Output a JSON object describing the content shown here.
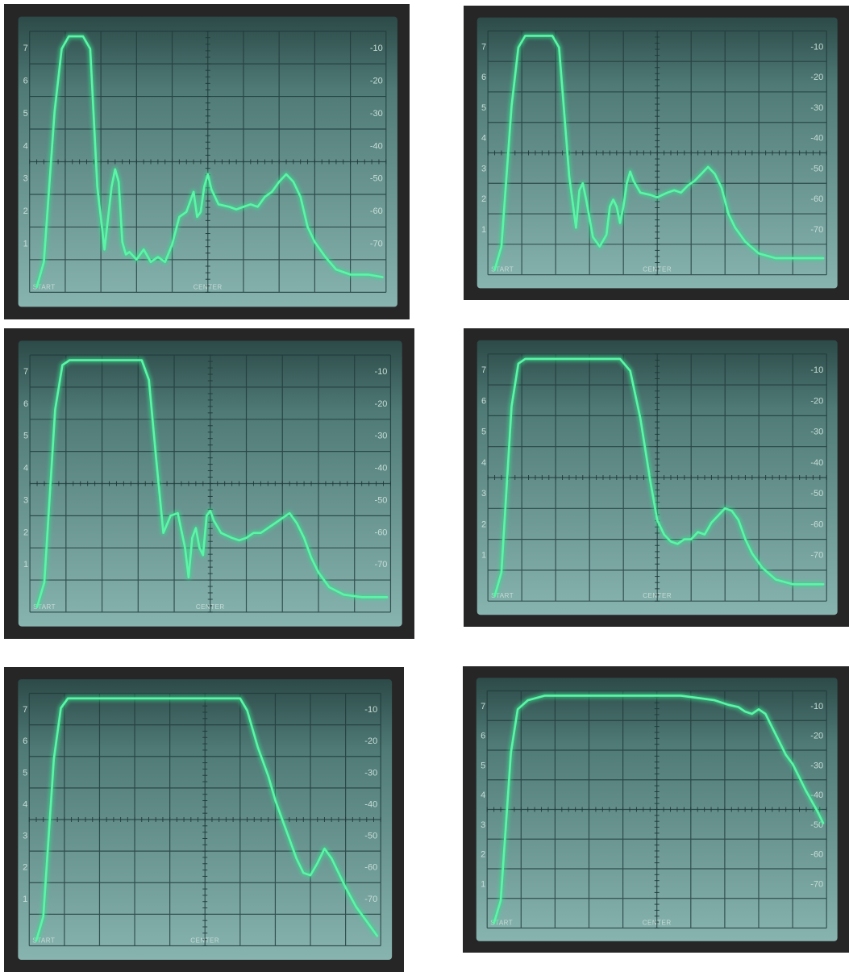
{
  "screen": {
    "start_label": "START",
    "center_label": "CENTER",
    "left_scale": [
      "7",
      "6",
      "5",
      "4",
      "3",
      "2",
      "1"
    ],
    "right_scale": [
      "-10",
      "-20",
      "-30",
      "-40",
      "-50",
      "-60",
      "-70"
    ],
    "colors": {
      "trace": "#5cf5a8",
      "trace_glow": "#35e08a",
      "screen_top": "#2c4a48",
      "screen_bottom": "#88b4b0",
      "bezel": "#262626",
      "grid": "#1f3a3a"
    }
  },
  "photos": [
    {
      "trace": [
        [
          0.02,
          1.0
        ],
        [
          0.04,
          0.9
        ],
        [
          0.07,
          0.3
        ],
        [
          0.09,
          0.05
        ],
        [
          0.11,
          0.0
        ],
        [
          0.13,
          0.0
        ],
        [
          0.15,
          0.0
        ],
        [
          0.17,
          0.05
        ],
        [
          0.19,
          0.6
        ],
        [
          0.21,
          0.85
        ],
        [
          0.23,
          0.6
        ],
        [
          0.24,
          0.53
        ],
        [
          0.25,
          0.58
        ],
        [
          0.26,
          0.82
        ],
        [
          0.27,
          0.87
        ],
        [
          0.28,
          0.86
        ],
        [
          0.3,
          0.89
        ],
        [
          0.32,
          0.85
        ],
        [
          0.34,
          0.9
        ],
        [
          0.36,
          0.88
        ],
        [
          0.38,
          0.9
        ],
        [
          0.4,
          0.83
        ],
        [
          0.42,
          0.72
        ],
        [
          0.44,
          0.7
        ],
        [
          0.45,
          0.66
        ],
        [
          0.46,
          0.62
        ],
        [
          0.47,
          0.72
        ],
        [
          0.48,
          0.7
        ],
        [
          0.49,
          0.6
        ],
        [
          0.5,
          0.55
        ],
        [
          0.51,
          0.61
        ],
        [
          0.53,
          0.67
        ],
        [
          0.56,
          0.68
        ],
        [
          0.58,
          0.69
        ],
        [
          0.6,
          0.68
        ],
        [
          0.62,
          0.67
        ],
        [
          0.64,
          0.68
        ],
        [
          0.66,
          0.64
        ],
        [
          0.68,
          0.62
        ],
        [
          0.7,
          0.58
        ],
        [
          0.72,
          0.55
        ],
        [
          0.74,
          0.58
        ],
        [
          0.76,
          0.64
        ],
        [
          0.78,
          0.76
        ],
        [
          0.8,
          0.82
        ],
        [
          0.83,
          0.88
        ],
        [
          0.86,
          0.93
        ],
        [
          0.9,
          0.95
        ],
        [
          0.95,
          0.95
        ],
        [
          0.99,
          0.96
        ]
      ]
    },
    {
      "trace": [
        [
          0.02,
          1.0
        ],
        [
          0.04,
          0.9
        ],
        [
          0.07,
          0.3
        ],
        [
          0.09,
          0.05
        ],
        [
          0.11,
          0.0
        ],
        [
          0.14,
          0.0
        ],
        [
          0.17,
          0.0
        ],
        [
          0.19,
          0.0
        ],
        [
          0.21,
          0.05
        ],
        [
          0.24,
          0.6
        ],
        [
          0.26,
          0.82
        ],
        [
          0.27,
          0.66
        ],
        [
          0.28,
          0.63
        ],
        [
          0.29,
          0.7
        ],
        [
          0.31,
          0.86
        ],
        [
          0.33,
          0.9
        ],
        [
          0.35,
          0.85
        ],
        [
          0.36,
          0.73
        ],
        [
          0.37,
          0.7
        ],
        [
          0.38,
          0.73
        ],
        [
          0.39,
          0.8
        ],
        [
          0.4,
          0.73
        ],
        [
          0.41,
          0.63
        ],
        [
          0.42,
          0.58
        ],
        [
          0.43,
          0.62
        ],
        [
          0.45,
          0.67
        ],
        [
          0.48,
          0.68
        ],
        [
          0.5,
          0.69
        ],
        [
          0.53,
          0.67
        ],
        [
          0.55,
          0.66
        ],
        [
          0.57,
          0.67
        ],
        [
          0.59,
          0.64
        ],
        [
          0.61,
          0.62
        ],
        [
          0.63,
          0.59
        ],
        [
          0.65,
          0.56
        ],
        [
          0.67,
          0.59
        ],
        [
          0.69,
          0.65
        ],
        [
          0.71,
          0.76
        ],
        [
          0.73,
          0.82
        ],
        [
          0.76,
          0.88
        ],
        [
          0.8,
          0.93
        ],
        [
          0.85,
          0.95
        ],
        [
          0.92,
          0.95
        ],
        [
          0.99,
          0.95
        ]
      ]
    },
    {
      "trace": [
        [
          0.02,
          1.0
        ],
        [
          0.04,
          0.9
        ],
        [
          0.07,
          0.2
        ],
        [
          0.09,
          0.02
        ],
        [
          0.11,
          0.0
        ],
        [
          0.15,
          0.0
        ],
        [
          0.19,
          0.0
        ],
        [
          0.23,
          0.0
        ],
        [
          0.27,
          0.0
        ],
        [
          0.31,
          0.0
        ],
        [
          0.33,
          0.08
        ],
        [
          0.35,
          0.4
        ],
        [
          0.37,
          0.7
        ],
        [
          0.39,
          0.63
        ],
        [
          0.41,
          0.62
        ],
        [
          0.43,
          0.76
        ],
        [
          0.44,
          0.88
        ],
        [
          0.45,
          0.72
        ],
        [
          0.46,
          0.68
        ],
        [
          0.47,
          0.76
        ],
        [
          0.48,
          0.79
        ],
        [
          0.49,
          0.63
        ],
        [
          0.5,
          0.61
        ],
        [
          0.51,
          0.65
        ],
        [
          0.53,
          0.7
        ],
        [
          0.56,
          0.72
        ],
        [
          0.58,
          0.73
        ],
        [
          0.6,
          0.72
        ],
        [
          0.62,
          0.7
        ],
        [
          0.64,
          0.7
        ],
        [
          0.66,
          0.68
        ],
        [
          0.68,
          0.66
        ],
        [
          0.7,
          0.64
        ],
        [
          0.72,
          0.62
        ],
        [
          0.74,
          0.66
        ],
        [
          0.76,
          0.72
        ],
        [
          0.78,
          0.8
        ],
        [
          0.8,
          0.86
        ],
        [
          0.83,
          0.92
        ],
        [
          0.87,
          0.95
        ],
        [
          0.92,
          0.96
        ],
        [
          0.99,
          0.96
        ]
      ]
    },
    {
      "trace": [
        [
          0.02,
          1.0
        ],
        [
          0.04,
          0.9
        ],
        [
          0.07,
          0.2
        ],
        [
          0.09,
          0.02
        ],
        [
          0.11,
          0.0
        ],
        [
          0.15,
          0.0
        ],
        [
          0.2,
          0.0
        ],
        [
          0.25,
          0.0
        ],
        [
          0.3,
          0.0
        ],
        [
          0.35,
          0.0
        ],
        [
          0.39,
          0.0
        ],
        [
          0.42,
          0.05
        ],
        [
          0.45,
          0.25
        ],
        [
          0.48,
          0.52
        ],
        [
          0.5,
          0.68
        ],
        [
          0.52,
          0.74
        ],
        [
          0.54,
          0.77
        ],
        [
          0.56,
          0.78
        ],
        [
          0.58,
          0.76
        ],
        [
          0.6,
          0.76
        ],
        [
          0.62,
          0.73
        ],
        [
          0.64,
          0.74
        ],
        [
          0.66,
          0.69
        ],
        [
          0.68,
          0.66
        ],
        [
          0.7,
          0.63
        ],
        [
          0.72,
          0.64
        ],
        [
          0.74,
          0.68
        ],
        [
          0.76,
          0.76
        ],
        [
          0.78,
          0.82
        ],
        [
          0.81,
          0.88
        ],
        [
          0.85,
          0.93
        ],
        [
          0.9,
          0.95
        ],
        [
          0.99,
          0.95
        ]
      ]
    },
    {
      "trace": [
        [
          0.02,
          1.0
        ],
        [
          0.04,
          0.9
        ],
        [
          0.07,
          0.25
        ],
        [
          0.09,
          0.04
        ],
        [
          0.11,
          0.0
        ],
        [
          0.16,
          0.0
        ],
        [
          0.21,
          0.0
        ],
        [
          0.26,
          0.0
        ],
        [
          0.31,
          0.0
        ],
        [
          0.36,
          0.0
        ],
        [
          0.41,
          0.0
        ],
        [
          0.46,
          0.0
        ],
        [
          0.52,
          0.0
        ],
        [
          0.57,
          0.0
        ],
        [
          0.6,
          0.0
        ],
        [
          0.62,
          0.05
        ],
        [
          0.65,
          0.2
        ],
        [
          0.68,
          0.32
        ],
        [
          0.7,
          0.42
        ],
        [
          0.72,
          0.5
        ],
        [
          0.74,
          0.58
        ],
        [
          0.76,
          0.66
        ],
        [
          0.78,
          0.72
        ],
        [
          0.8,
          0.73
        ],
        [
          0.82,
          0.68
        ],
        [
          0.84,
          0.62
        ],
        [
          0.86,
          0.66
        ],
        [
          0.88,
          0.72
        ],
        [
          0.9,
          0.78
        ],
        [
          0.93,
          0.86
        ],
        [
          0.96,
          0.92
        ],
        [
          0.99,
          0.98
        ]
      ]
    },
    {
      "trace": [
        [
          0.02,
          1.0
        ],
        [
          0.04,
          0.9
        ],
        [
          0.07,
          0.25
        ],
        [
          0.09,
          0.06
        ],
        [
          0.12,
          0.02
        ],
        [
          0.17,
          0.0
        ],
        [
          0.22,
          0.0
        ],
        [
          0.27,
          0.0
        ],
        [
          0.32,
          0.0
        ],
        [
          0.37,
          0.0
        ],
        [
          0.42,
          0.0
        ],
        [
          0.47,
          0.0
        ],
        [
          0.52,
          0.0
        ],
        [
          0.57,
          0.0
        ],
        [
          0.62,
          0.01
        ],
        [
          0.67,
          0.02
        ],
        [
          0.71,
          0.04
        ],
        [
          0.74,
          0.05
        ],
        [
          0.76,
          0.07
        ],
        [
          0.78,
          0.08
        ],
        [
          0.8,
          0.06
        ],
        [
          0.82,
          0.08
        ],
        [
          0.84,
          0.14
        ],
        [
          0.86,
          0.2
        ],
        [
          0.88,
          0.26
        ],
        [
          0.9,
          0.3
        ],
        [
          0.92,
          0.36
        ],
        [
          0.94,
          0.42
        ],
        [
          0.97,
          0.5
        ],
        [
          0.99,
          0.56
        ]
      ]
    }
  ]
}
